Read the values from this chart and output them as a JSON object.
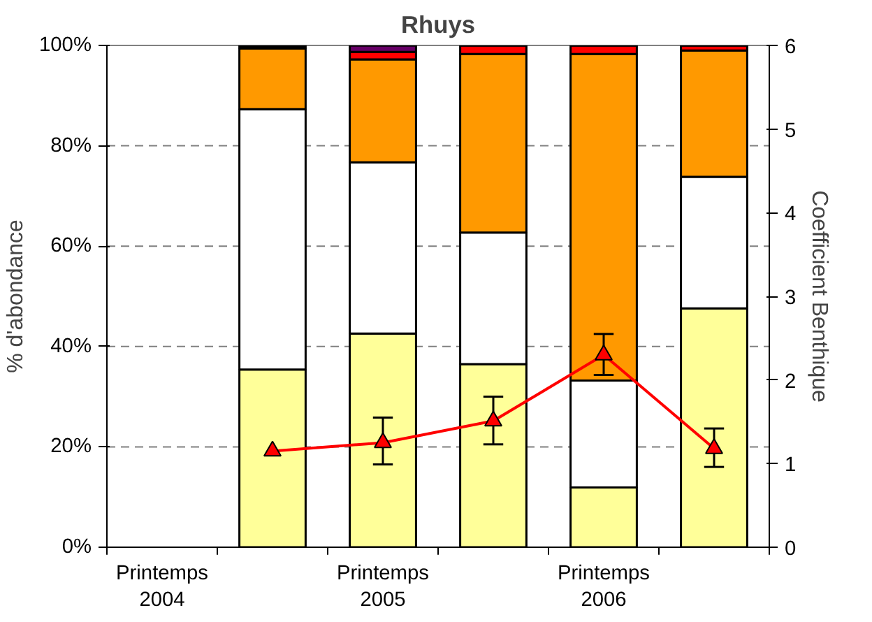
{
  "chart_data": {
    "type": "bar",
    "title": "Rhuys",
    "ylabel": "% d'abondance",
    "y2label": "Coefficient Benthique",
    "categories": [
      "Printemps 2004",
      null,
      "Printemps 2005",
      null,
      "Printemps 2006",
      null
    ],
    "stacked": true,
    "series": [
      {
        "color": "#ffff99",
        "values": [
          null,
          35.4,
          42.6,
          36.5,
          11.9,
          47.6
        ]
      },
      {
        "color": "#ffffff",
        "values": [
          null,
          51.9,
          34.1,
          26.2,
          21.3,
          26.2
        ]
      },
      {
        "color": "#ff9900",
        "values": [
          null,
          12.1,
          20.5,
          35.6,
          65.1,
          25.2
        ]
      },
      {
        "color": "#ff0000",
        "values": [
          null,
          0,
          1.5,
          1.7,
          1.7,
          1.0
        ]
      },
      {
        "color": "#660066",
        "values": [
          null,
          0,
          1.3,
          0,
          0,
          0
        ]
      },
      {
        "color": "#000000",
        "values": [
          null,
          0.6,
          0,
          0,
          0,
          0
        ]
      },
      {
        "type": "line",
        "axis": "y2",
        "color": "#ff0000",
        "marker": "triangle",
        "values": [
          null,
          1.15,
          1.25,
          1.51,
          2.3,
          1.18
        ],
        "errors": [
          null,
          null,
          [
            0.99,
            1.55
          ],
          [
            1.23,
            1.8
          ],
          [
            2.06,
            2.55
          ],
          [
            0.96,
            1.42
          ]
        ]
      }
    ],
    "ylim": [
      0,
      100
    ],
    "yticks": [
      {
        "value": 0,
        "label": "0%"
      },
      {
        "value": 20,
        "label": "20%"
      },
      {
        "value": 40,
        "label": "40%"
      },
      {
        "value": 60,
        "label": "60%"
      },
      {
        "value": 80,
        "label": "80%"
      },
      {
        "value": 100,
        "label": "100%"
      }
    ],
    "y2lim": [
      0,
      6
    ],
    "y2ticks": [
      0,
      1,
      2,
      3,
      4,
      5,
      6
    ],
    "grid": "y"
  }
}
